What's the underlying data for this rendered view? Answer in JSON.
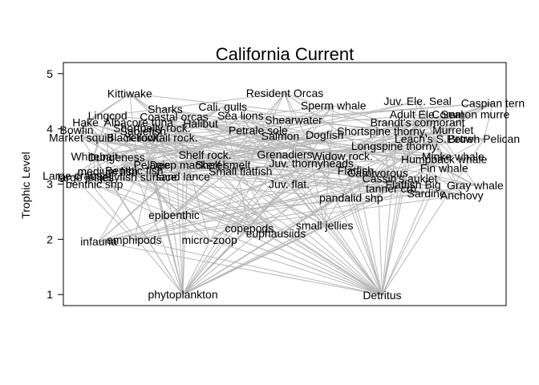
{
  "chart_data": {
    "type": "network",
    "title": "California Current",
    "xlabel": "",
    "ylabel": "Trophic Level",
    "ylim": [
      0.8,
      5.2
    ],
    "yticks": [
      1,
      2,
      3,
      4,
      5
    ],
    "colors": {
      "edge": "#b8b8b8",
      "text": "#000000",
      "frame": "#000000"
    },
    "nodes": [
      {
        "name": "Kittiwake",
        "x": 0.15,
        "y": 4.64
      },
      {
        "name": "Resident Orcas",
        "x": 0.5,
        "y": 4.65
      },
      {
        "name": "Sperm whale",
        "x": 0.61,
        "y": 4.42
      },
      {
        "name": "Juv. Ele. Seal",
        "x": 0.8,
        "y": 4.5
      },
      {
        "name": "Caspian tern",
        "x": 0.97,
        "y": 4.47
      },
      {
        "name": "Lingcod",
        "x": 0.1,
        "y": 4.24
      },
      {
        "name": "Sharks",
        "x": 0.23,
        "y": 4.36
      },
      {
        "name": "Cali. gulls",
        "x": 0.36,
        "y": 4.4
      },
      {
        "name": "Coastal orcas",
        "x": 0.25,
        "y": 4.22
      },
      {
        "name": "Hake",
        "x": 0.05,
        "y": 4.12
      },
      {
        "name": "Albacore tuna",
        "x": 0.17,
        "y": 4.12
      },
      {
        "name": "Shortbelly rock.",
        "x": 0.2,
        "y": 4.02
      },
      {
        "name": "Halibut",
        "x": 0.31,
        "y": 4.1
      },
      {
        "name": "Sea lions",
        "x": 0.4,
        "y": 4.24
      },
      {
        "name": "Shearwater",
        "x": 0.52,
        "y": 4.16
      },
      {
        "name": "Adult Ele. Seal",
        "x": 0.82,
        "y": 4.26
      },
      {
        "name": "Common murre",
        "x": 0.92,
        "y": 4.26
      },
      {
        "name": "Brandt's cormorant",
        "x": 0.8,
        "y": 4.12
      },
      {
        "name": "Bowfin",
        "x": 0.03,
        "y": 3.98
      },
      {
        "name": "Market squid",
        "x": 0.04,
        "y": 3.84
      },
      {
        "name": "Sablefish",
        "x": 0.18,
        "y": 3.96
      },
      {
        "name": "Black rock.",
        "x": 0.16,
        "y": 3.84
      },
      {
        "name": "Yellowtail rock.",
        "x": 0.22,
        "y": 3.84
      },
      {
        "name": "Petrale sole",
        "x": 0.44,
        "y": 3.97
      },
      {
        "name": "Salmon",
        "x": 0.49,
        "y": 3.87
      },
      {
        "name": "Dogfish",
        "x": 0.59,
        "y": 3.89
      },
      {
        "name": "Shortspine thorny.",
        "x": 0.72,
        "y": 3.96
      },
      {
        "name": "Murrelet",
        "x": 0.88,
        "y": 3.98
      },
      {
        "name": "Leach's S.Petrel",
        "x": 0.84,
        "y": 3.82
      },
      {
        "name": "Brown Pelican",
        "x": 0.95,
        "y": 3.82
      },
      {
        "name": "Longspine thorny.",
        "x": 0.75,
        "y": 3.69
      },
      {
        "name": "Widow rock.",
        "x": 0.63,
        "y": 3.51
      },
      {
        "name": "Minke whale",
        "x": 0.88,
        "y": 3.5
      },
      {
        "name": "Humpback whale",
        "x": 0.86,
        "y": 3.45
      },
      {
        "name": "Whitebait",
        "x": 0.07,
        "y": 3.5
      },
      {
        "name": "Dungeness",
        "x": 0.12,
        "y": 3.49
      },
      {
        "name": "Shelf rock.",
        "x": 0.32,
        "y": 3.53
      },
      {
        "name": "Grenadiers",
        "x": 0.5,
        "y": 3.54
      },
      {
        "name": "Juv. thornyheads",
        "x": 0.56,
        "y": 3.38
      },
      {
        "name": "Fin whale",
        "x": 0.86,
        "y": 3.29
      },
      {
        "name": "Deep mackerel",
        "x": 0.28,
        "y": 3.35
      },
      {
        "name": "Shelf smelt",
        "x": 0.36,
        "y": 3.35
      },
      {
        "name": "Large crabs",
        "x": 0.02,
        "y": 3.15
      },
      {
        "name": "medium fish",
        "x": 0.1,
        "y": 3.23
      },
      {
        "name": "Benthic fish",
        "x": 0.16,
        "y": 3.25
      },
      {
        "name": "Small flatfish",
        "x": 0.4,
        "y": 3.23
      },
      {
        "name": "Pelagic",
        "x": 0.2,
        "y": 3.35
      },
      {
        "name": "Flatfish",
        "x": 0.66,
        "y": 3.25
      },
      {
        "name": "Carnivorous",
        "x": 0.71,
        "y": 3.2
      },
      {
        "name": "Cassin's auklet",
        "x": 0.76,
        "y": 3.1
      },
      {
        "name": "Flatfish Big",
        "x": 0.79,
        "y": 2.99
      },
      {
        "name": "Gray whale",
        "x": 0.93,
        "y": 2.98
      },
      {
        "name": "large jellies",
        "x": 0.05,
        "y": 3.12
      },
      {
        "name": "benthic shp",
        "x": 0.07,
        "y": 3.0
      },
      {
        "name": "jellyfish surface",
        "x": 0.17,
        "y": 3.13
      },
      {
        "name": "sand lance",
        "x": 0.27,
        "y": 3.14
      },
      {
        "name": "Juv. flat.",
        "x": 0.51,
        "y": 3.0
      },
      {
        "name": "pandalid shp",
        "x": 0.65,
        "y": 2.75
      },
      {
        "name": "tanner crb",
        "x": 0.74,
        "y": 2.92
      },
      {
        "name": "Sardine",
        "x": 0.82,
        "y": 2.83
      },
      {
        "name": "Anchovy",
        "x": 0.9,
        "y": 2.8
      },
      {
        "name": "epibenthic",
        "x": 0.25,
        "y": 2.44
      },
      {
        "name": "copepods",
        "x": 0.42,
        "y": 2.2
      },
      {
        "name": "euphausiids",
        "x": 0.48,
        "y": 2.11
      },
      {
        "name": "small jellies",
        "x": 0.59,
        "y": 2.25
      },
      {
        "name": "infauna",
        "x": 0.08,
        "y": 1.96
      },
      {
        "name": "amphipods",
        "x": 0.16,
        "y": 1.99
      },
      {
        "name": "micro-zoop",
        "x": 0.33,
        "y": 1.99
      },
      {
        "name": "phytoplankton",
        "x": 0.27,
        "y": 1.0
      },
      {
        "name": "Detritus",
        "x": 0.72,
        "y": 0.99
      }
    ]
  }
}
